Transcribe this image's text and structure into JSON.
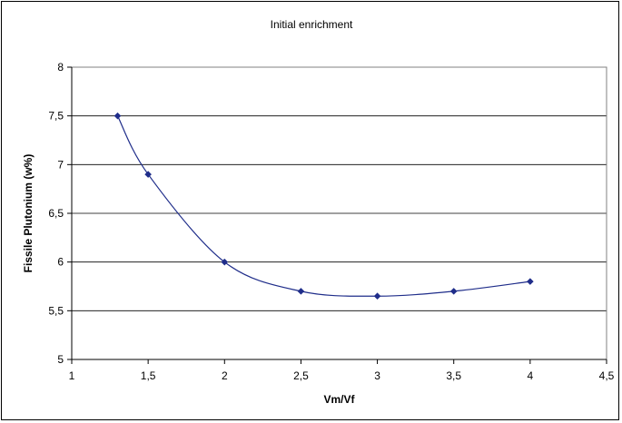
{
  "chart_data": {
    "type": "line",
    "title": "Initial enrichment",
    "xlabel": "Vm/Vf",
    "ylabel": "Fissile Plutonium (w%)",
    "xlim": [
      1,
      4.5
    ],
    "ylim": [
      5,
      8
    ],
    "x_ticks": [
      "1",
      "1,5",
      "2",
      "2,5",
      "3",
      "3,5",
      "4",
      "4,5"
    ],
    "y_ticks": [
      "5",
      "5,5",
      "6",
      "6,5",
      "7",
      "7,5",
      "8"
    ],
    "grid": "horizontal major gridlines",
    "legend": "none",
    "series": [
      {
        "x": [
          1.3,
          1.5,
          2.0,
          2.5,
          3.0,
          3.5,
          4.0
        ],
        "values": [
          7.5,
          6.9,
          6.0,
          5.7,
          5.65,
          5.7,
          5.8
        ],
        "color": "#1f2d8a",
        "marker": "diamond",
        "smooth": true
      }
    ]
  }
}
